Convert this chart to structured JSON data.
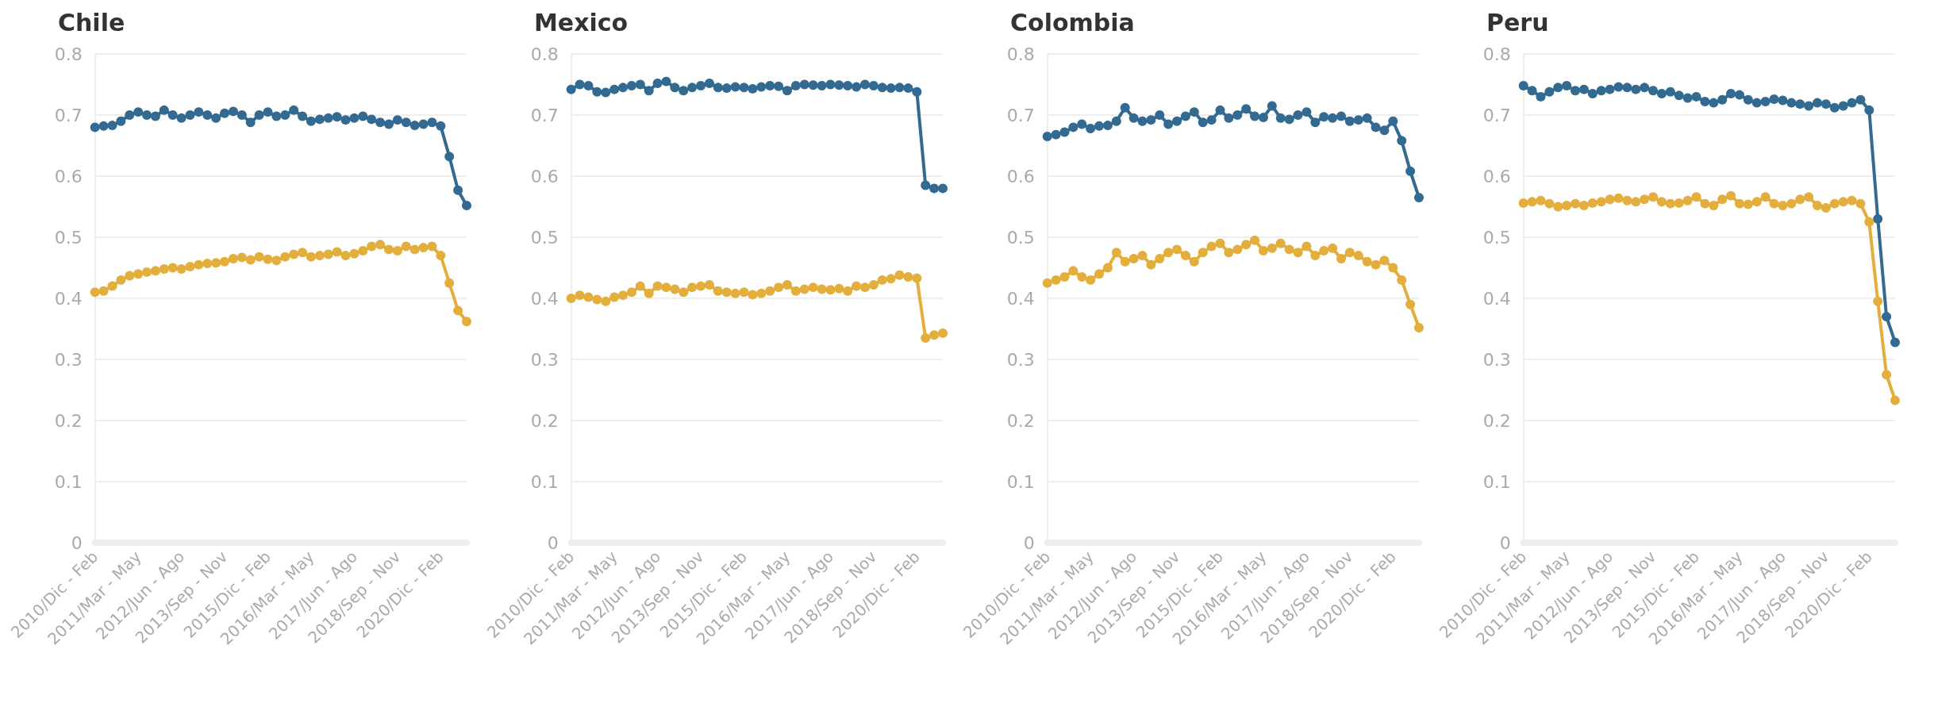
{
  "chart_data": [
    {
      "type": "line",
      "title": "Chile",
      "categories": [
        "2010/Dic - Feb",
        null,
        null,
        null,
        null,
        "2011/Mar - May",
        null,
        null,
        null,
        null,
        "2012/Jun - Ago",
        null,
        null,
        null,
        null,
        "2013/Sep - Nov",
        null,
        null,
        null,
        null,
        "2015/Dic - Feb",
        null,
        null,
        null,
        null,
        "2016/Mar - May",
        null,
        null,
        null,
        null,
        "2017/Jun - Ago",
        null,
        null,
        null,
        null,
        "2018/Sep - Nov",
        null,
        null,
        null,
        null,
        "2020/Dic - Feb",
        null,
        null,
        null
      ],
      "ylim": [
        0,
        0.8
      ],
      "yticks": [
        0,
        0.1,
        0.2,
        0.3,
        0.4,
        0.5,
        0.6,
        0.7,
        0.8
      ],
      "grid": "y",
      "marker": "circle",
      "line_style": "solid",
      "series": [
        {
          "color": "#336a92",
          "values": [
            0.68,
            0.682,
            0.683,
            0.69,
            0.7,
            0.705,
            0.7,
            0.698,
            0.708,
            0.7,
            0.695,
            0.7,
            0.705,
            0.7,
            0.695,
            0.703,
            0.706,
            0.7,
            0.688,
            0.7,
            0.705,
            0.698,
            0.7,
            0.708,
            0.698,
            0.69,
            0.693,
            0.695,
            0.697,
            0.692,
            0.695,
            0.698,
            0.693,
            0.688,
            0.685,
            0.692,
            0.688,
            0.683,
            0.685,
            0.688,
            0.682,
            0.632,
            0.577,
            0.552
          ]
        },
        {
          "color": "#e3ae3c",
          "values": [
            0.41,
            0.412,
            0.42,
            0.43,
            0.437,
            0.44,
            0.443,
            0.445,
            0.448,
            0.45,
            0.448,
            0.452,
            0.455,
            0.457,
            0.458,
            0.46,
            0.465,
            0.467,
            0.463,
            0.468,
            0.464,
            0.462,
            0.468,
            0.472,
            0.475,
            0.468,
            0.47,
            0.472,
            0.476,
            0.47,
            0.473,
            0.478,
            0.485,
            0.488,
            0.48,
            0.478,
            0.485,
            0.48,
            0.483,
            0.485,
            0.47,
            0.425,
            0.38,
            0.362
          ]
        }
      ]
    },
    {
      "type": "line",
      "title": "Mexico",
      "categories": [
        "2010/Dic - Feb",
        null,
        null,
        null,
        null,
        "2011/Mar - May",
        null,
        null,
        null,
        null,
        "2012/Jun - Ago",
        null,
        null,
        null,
        null,
        "2013/Sep - Nov",
        null,
        null,
        null,
        null,
        "2015/Dic - Feb",
        null,
        null,
        null,
        null,
        "2016/Mar - May",
        null,
        null,
        null,
        null,
        "2017/Jun - Ago",
        null,
        null,
        null,
        null,
        "2018/Sep - Nov",
        null,
        null,
        null,
        null,
        "2020/Dic - Feb",
        null,
        null,
        null
      ],
      "ylim": [
        0,
        0.8
      ],
      "yticks": [
        0,
        0.1,
        0.2,
        0.3,
        0.4,
        0.5,
        0.6,
        0.7,
        0.8
      ],
      "grid": "y",
      "marker": "circle",
      "line_style": "solid",
      "series": [
        {
          "color": "#336a92",
          "values": [
            0.742,
            0.75,
            0.748,
            0.738,
            0.737,
            0.742,
            0.745,
            0.748,
            0.75,
            0.74,
            0.752,
            0.755,
            0.745,
            0.74,
            0.745,
            0.748,
            0.752,
            0.745,
            0.744,
            0.746,
            0.745,
            0.743,
            0.746,
            0.748,
            0.747,
            0.74,
            0.748,
            0.75,
            0.749,
            0.748,
            0.75,
            0.749,
            0.748,
            0.746,
            0.75,
            0.748,
            0.745,
            0.744,
            0.745,
            0.744,
            0.738,
            0.585,
            0.58,
            0.58
          ]
        },
        {
          "color": "#e3ae3c",
          "values": [
            0.4,
            0.405,
            0.402,
            0.398,
            0.395,
            0.402,
            0.405,
            0.41,
            0.42,
            0.408,
            0.42,
            0.418,
            0.415,
            0.41,
            0.418,
            0.42,
            0.422,
            0.412,
            0.41,
            0.408,
            0.41,
            0.406,
            0.408,
            0.412,
            0.418,
            0.422,
            0.412,
            0.415,
            0.418,
            0.415,
            0.414,
            0.416,
            0.412,
            0.42,
            0.418,
            0.422,
            0.43,
            0.432,
            0.438,
            0.435,
            0.433,
            0.335,
            0.34,
            0.343
          ]
        }
      ]
    },
    {
      "type": "line",
      "title": "Colombia",
      "categories": [
        "2010/Dic - Feb",
        null,
        null,
        null,
        null,
        "2011/Mar - May",
        null,
        null,
        null,
        null,
        "2012/Jun - Ago",
        null,
        null,
        null,
        null,
        "2013/Sep - Nov",
        null,
        null,
        null,
        null,
        "2015/Dic - Feb",
        null,
        null,
        null,
        null,
        "2016/Mar - May",
        null,
        null,
        null,
        null,
        "2017/Jun - Ago",
        null,
        null,
        null,
        null,
        "2018/Sep - Nov",
        null,
        null,
        null,
        null,
        "2020/Dic - Feb",
        null,
        null,
        null
      ],
      "ylim": [
        0,
        0.8
      ],
      "yticks": [
        0,
        0.1,
        0.2,
        0.3,
        0.4,
        0.5,
        0.6,
        0.7,
        0.8
      ],
      "grid": "y",
      "marker": "circle",
      "line_style": "solid",
      "series": [
        {
          "color": "#336a92",
          "values": [
            0.665,
            0.668,
            0.672,
            0.68,
            0.685,
            0.678,
            0.682,
            0.683,
            0.69,
            0.712,
            0.695,
            0.69,
            0.692,
            0.7,
            0.685,
            0.69,
            0.698,
            0.705,
            0.688,
            0.692,
            0.708,
            0.695,
            0.7,
            0.71,
            0.698,
            0.696,
            0.715,
            0.695,
            0.693,
            0.7,
            0.705,
            0.688,
            0.697,
            0.695,
            0.698,
            0.69,
            0.692,
            0.695,
            0.68,
            0.675,
            0.69,
            0.658,
            0.608,
            0.565
          ]
        },
        {
          "color": "#e3ae3c",
          "values": [
            0.425,
            0.43,
            0.435,
            0.445,
            0.435,
            0.43,
            0.44,
            0.45,
            0.475,
            0.46,
            0.465,
            0.47,
            0.455,
            0.465,
            0.475,
            0.48,
            0.47,
            0.46,
            0.475,
            0.485,
            0.49,
            0.475,
            0.48,
            0.488,
            0.495,
            0.478,
            0.482,
            0.49,
            0.48,
            0.475,
            0.485,
            0.47,
            0.478,
            0.482,
            0.465,
            0.475,
            0.47,
            0.46,
            0.455,
            0.462,
            0.45,
            0.43,
            0.39,
            0.352
          ]
        }
      ]
    },
    {
      "type": "line",
      "title": "Peru",
      "categories": [
        "2010/Dic - Feb",
        null,
        null,
        null,
        null,
        "2011/Mar - May",
        null,
        null,
        null,
        null,
        "2012/Jun - Ago",
        null,
        null,
        null,
        null,
        "2013/Sep - Nov",
        null,
        null,
        null,
        null,
        "2015/Dic - Feb",
        null,
        null,
        null,
        null,
        "2016/Mar - May",
        null,
        null,
        null,
        null,
        "2017/Jun - Ago",
        null,
        null,
        null,
        null,
        "2018/Sep - Nov",
        null,
        null,
        null,
        null,
        "2020/Dic - Feb",
        null,
        null,
        null
      ],
      "ylim": [
        0,
        0.8
      ],
      "yticks": [
        0,
        0.1,
        0.2,
        0.3,
        0.4,
        0.5,
        0.6,
        0.7,
        0.8
      ],
      "grid": "y",
      "marker": "circle",
      "line_style": "solid",
      "series": [
        {
          "color": "#336a92",
          "values": [
            0.748,
            0.74,
            0.73,
            0.738,
            0.745,
            0.748,
            0.74,
            0.742,
            0.735,
            0.74,
            0.742,
            0.746,
            0.745,
            0.742,
            0.745,
            0.74,
            0.735,
            0.738,
            0.732,
            0.728,
            0.73,
            0.722,
            0.72,
            0.725,
            0.735,
            0.733,
            0.725,
            0.72,
            0.722,
            0.726,
            0.724,
            0.72,
            0.718,
            0.715,
            0.72,
            0.718,
            0.712,
            0.715,
            0.72,
            0.725,
            0.708,
            0.53,
            0.37,
            0.328
          ]
        },
        {
          "color": "#e3ae3c",
          "values": [
            0.556,
            0.558,
            0.56,
            0.555,
            0.55,
            0.552,
            0.555,
            0.552,
            0.556,
            0.558,
            0.562,
            0.564,
            0.56,
            0.558,
            0.562,
            0.566,
            0.558,
            0.555,
            0.556,
            0.56,
            0.566,
            0.555,
            0.552,
            0.562,
            0.568,
            0.555,
            0.554,
            0.558,
            0.566,
            0.555,
            0.552,
            0.555,
            0.562,
            0.566,
            0.552,
            0.548,
            0.555,
            0.558,
            0.56,
            0.555,
            0.525,
            0.395,
            0.275,
            0.233
          ]
        }
      ]
    }
  ]
}
